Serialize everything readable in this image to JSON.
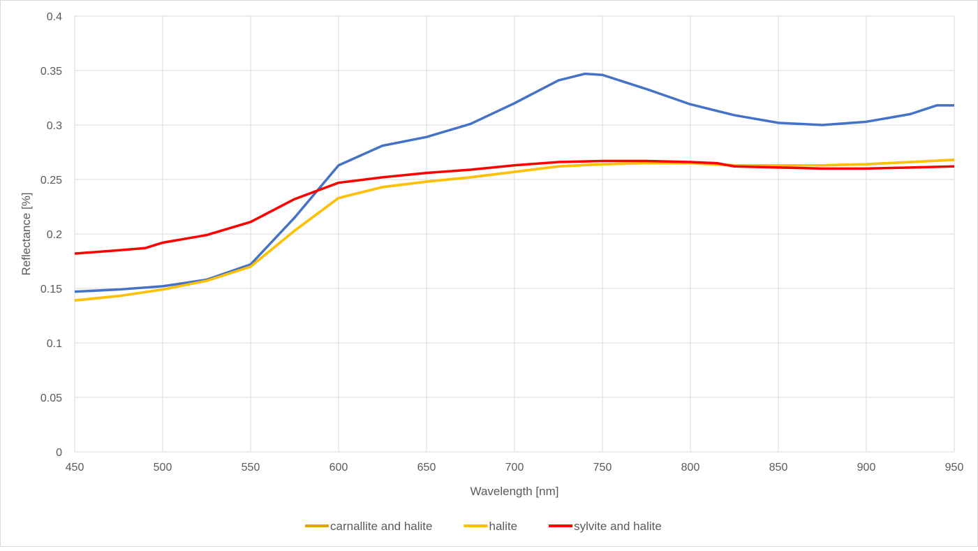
{
  "chart_data": {
    "type": "line",
    "title": "",
    "xlabel": "Wavelength [nm]",
    "ylabel": "Reflectance [%]",
    "xlim": [
      450,
      950
    ],
    "ylim": [
      0,
      0.4
    ],
    "xticks": [
      "450",
      "500",
      "550",
      "600",
      "650",
      "700",
      "750",
      "800",
      "850",
      "900",
      "950"
    ],
    "yticks": [
      "0",
      "0.05",
      "0.1",
      "0.15",
      "0.2",
      "0.25",
      "0.3",
      "0.35",
      "0.4"
    ],
    "grid": true,
    "legend_position": "bottom",
    "series": [
      {
        "name": "carnallite and halite",
        "color": "#E0A800",
        "in_legend": true,
        "x": [
          450,
          475,
          500,
          525,
          550,
          575,
          600,
          625,
          650,
          675,
          700,
          725,
          750,
          775,
          800,
          825,
          850,
          875,
          900,
          925,
          950
        ],
        "y": [
          0.139,
          0.143,
          0.149,
          0.157,
          0.17,
          0.203,
          0.233,
          0.243,
          0.248,
          0.252,
          0.257,
          0.262,
          0.264,
          0.265,
          0.265,
          0.263,
          0.263,
          0.263,
          0.264,
          0.266,
          0.268
        ]
      },
      {
        "name": "",
        "color": "#4472C4",
        "in_legend": false,
        "x": [
          450,
          475,
          500,
          525,
          550,
          575,
          600,
          625,
          650,
          675,
          700,
          725,
          740,
          750,
          775,
          800,
          825,
          850,
          875,
          900,
          925,
          940,
          950
        ],
        "y": [
          0.147,
          0.149,
          0.152,
          0.158,
          0.172,
          0.215,
          0.263,
          0.281,
          0.289,
          0.301,
          0.32,
          0.341,
          0.347,
          0.346,
          0.333,
          0.319,
          0.309,
          0.302,
          0.3,
          0.303,
          0.31,
          0.318,
          0.318
        ]
      },
      {
        "name": "halite",
        "color": "#FFC000",
        "in_legend": true,
        "x": [
          450,
          475,
          500,
          525,
          550,
          575,
          600,
          625,
          650,
          675,
          700,
          725,
          750,
          775,
          800,
          825,
          850,
          875,
          900,
          925,
          950
        ],
        "y": [
          0.139,
          0.143,
          0.149,
          0.157,
          0.17,
          0.203,
          0.233,
          0.243,
          0.248,
          0.252,
          0.257,
          0.262,
          0.264,
          0.265,
          0.265,
          0.263,
          0.263,
          0.263,
          0.264,
          0.266,
          0.268
        ]
      },
      {
        "name": "sylvite and halite",
        "color": "#FF0000",
        "in_legend": true,
        "x": [
          450,
          475,
          490,
          500,
          525,
          550,
          575,
          600,
          625,
          650,
          675,
          700,
          725,
          750,
          775,
          800,
          815,
          825,
          850,
          875,
          900,
          925,
          950
        ],
        "y": [
          0.182,
          0.185,
          0.187,
          0.192,
          0.199,
          0.211,
          0.232,
          0.247,
          0.252,
          0.256,
          0.259,
          0.263,
          0.266,
          0.267,
          0.267,
          0.266,
          0.265,
          0.262,
          0.261,
          0.26,
          0.26,
          0.261,
          0.262
        ]
      }
    ]
  }
}
